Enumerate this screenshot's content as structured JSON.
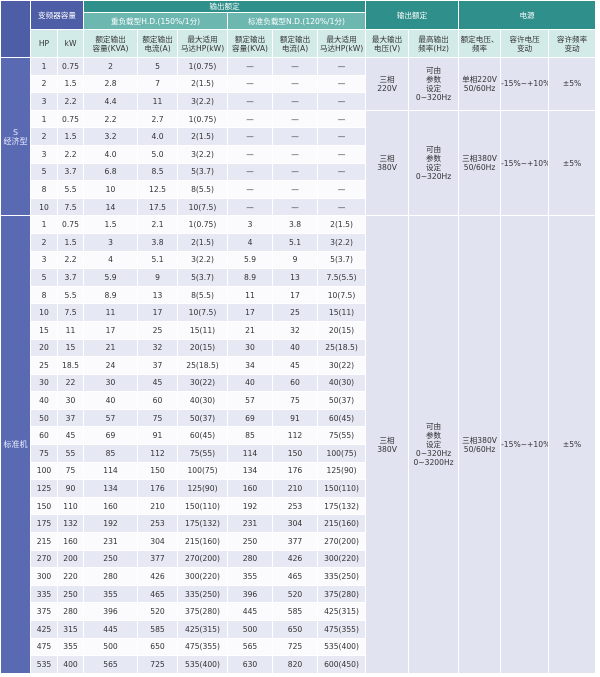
{
  "header": {
    "capacity": "变频器容量",
    "output_rating": "输出额定",
    "hd": "重负载型H.D.(150%/1分)",
    "nd": "标准负载型N.D.(120%/1分)",
    "output_spec": "输出额定",
    "power": "电源",
    "columns": [
      "HP",
      "kW",
      "额定输出\n容量(KVA)",
      "额定输出\n电流(A)",
      "最大适用\n马达HP(kW)",
      "额定输出\n容量(KVA)",
      "额定输出\n电流(A)",
      "最大适用\n马达HP(kW)",
      "最大输出\n电压(V)",
      "最高输出\n频率(Hz)",
      "额定电压、\n频率",
      "容许电压\n变动",
      "容许频率\n变动"
    ]
  },
  "groups": [
    {
      "label": "S\n经济型",
      "sections": [
        {
          "rows": [
            [
              "1",
              "0.75",
              "2",
              "5",
              "1(0.75)",
              "—",
              "—",
              "—"
            ],
            [
              "2",
              "1.5",
              "2.8",
              "7",
              "2(1.5)",
              "—",
              "—",
              "—"
            ],
            [
              "3",
              "2.2",
              "4.4",
              "11",
              "3(2.2)",
              "—",
              "—",
              "—"
            ]
          ],
          "merged": [
            "三相\n220V",
            "可由\n参数\n设定\n0~320Hz",
            "单相220V\n50/60Hz",
            "-15%~+10%",
            "±5%"
          ]
        },
        {
          "rows": [
            [
              "1",
              "0.75",
              "2.2",
              "2.7",
              "1(0.75)",
              "—",
              "—",
              "—"
            ],
            [
              "2",
              "1.5",
              "3.2",
              "4.0",
              "2(1.5)",
              "—",
              "—",
              "—"
            ],
            [
              "3",
              "2.2",
              "4.0",
              "5.0",
              "3(2.2)",
              "—",
              "—",
              "—"
            ],
            [
              "5",
              "3.7",
              "6.8",
              "8.5",
              "5(3.7)",
              "—",
              "—",
              "—"
            ],
            [
              "8",
              "5.5",
              "10",
              "12.5",
              "8(5.5)",
              "—",
              "—",
              "—"
            ],
            [
              "10",
              "7.5",
              "14",
              "17.5",
              "10(7.5)",
              "—",
              "—",
              "—"
            ]
          ],
          "merged": [
            "三相\n380V",
            "可由\n参数\n设定\n0~320Hz",
            "三相380V\n50/60Hz",
            "-15%~+10%",
            "±5%"
          ]
        }
      ]
    },
    {
      "label": "标准机",
      "sections": [
        {
          "rows": [
            [
              "1",
              "0.75",
              "1.5",
              "2.1",
              "1(0.75)",
              "3",
              "3.8",
              "2(1.5)"
            ],
            [
              "2",
              "1.5",
              "3",
              "3.8",
              "2(1.5)",
              "4",
              "5.1",
              "3(2.2)"
            ],
            [
              "3",
              "2.2",
              "4",
              "5.1",
              "3(2.2)",
              "5.9",
              "9",
              "5(3.7)"
            ],
            [
              "5",
              "3.7",
              "5.9",
              "9",
              "5(3.7)",
              "8.9",
              "13",
              "7.5(5.5)"
            ],
            [
              "8",
              "5.5",
              "8.9",
              "13",
              "8(5.5)",
              "11",
              "17",
              "10(7.5)"
            ],
            [
              "10",
              "7.5",
              "11",
              "17",
              "10(7.5)",
              "17",
              "25",
              "15(11)"
            ],
            [
              "15",
              "11",
              "17",
              "25",
              "15(11)",
              "21",
              "32",
              "20(15)"
            ],
            [
              "20",
              "15",
              "21",
              "32",
              "20(15)",
              "30",
              "40",
              "25(18.5)"
            ],
            [
              "25",
              "18.5",
              "24",
              "37",
              "25(18.5)",
              "34",
              "45",
              "30(22)"
            ],
            [
              "30",
              "22",
              "30",
              "45",
              "30(22)",
              "40",
              "60",
              "40(30)"
            ],
            [
              "40",
              "30",
              "40",
              "60",
              "40(30)",
              "57",
              "75",
              "50(37)"
            ],
            [
              "50",
              "37",
              "57",
              "75",
              "50(37)",
              "69",
              "91",
              "60(45)"
            ],
            [
              "60",
              "45",
              "69",
              "91",
              "60(45)",
              "85",
              "112",
              "75(55)"
            ],
            [
              "75",
              "55",
              "85",
              "112",
              "75(55)",
              "114",
              "150",
              "100(75)"
            ],
            [
              "100",
              "75",
              "114",
              "150",
              "100(75)",
              "134",
              "176",
              "125(90)"
            ],
            [
              "125",
              "90",
              "134",
              "176",
              "125(90)",
              "160",
              "210",
              "150(110)"
            ],
            [
              "150",
              "110",
              "160",
              "210",
              "150(110)",
              "192",
              "253",
              "175(132)"
            ],
            [
              "175",
              "132",
              "192",
              "253",
              "175(132)",
              "231",
              "304",
              "215(160)"
            ],
            [
              "215",
              "160",
              "231",
              "304",
              "215(160)",
              "250",
              "377",
              "270(200)"
            ],
            [
              "270",
              "200",
              "250",
              "377",
              "270(200)",
              "280",
              "426",
              "300(220)"
            ],
            [
              "300",
              "220",
              "280",
              "426",
              "300(220)",
              "355",
              "465",
              "335(250)"
            ],
            [
              "335",
              "250",
              "355",
              "465",
              "335(250)",
              "396",
              "520",
              "375(280)"
            ],
            [
              "375",
              "280",
              "396",
              "520",
              "375(280)",
              "445",
              "585",
              "425(315)"
            ],
            [
              "425",
              "315",
              "445",
              "585",
              "425(315)",
              "500",
              "650",
              "475(355)"
            ],
            [
              "475",
              "355",
              "500",
              "650",
              "475(355)",
              "565",
              "725",
              "535(400)"
            ],
            [
              "535",
              "400",
              "565",
              "725",
              "535(400)",
              "630",
              "820",
              "600(450)"
            ]
          ],
          "merged": [
            "三相\n380V",
            "可由\n参数\n设定\n0~320Hz\n0~3200Hz",
            "三相380V\n50/60Hz",
            "-15%~+10%",
            "±5%"
          ]
        }
      ]
    }
  ]
}
